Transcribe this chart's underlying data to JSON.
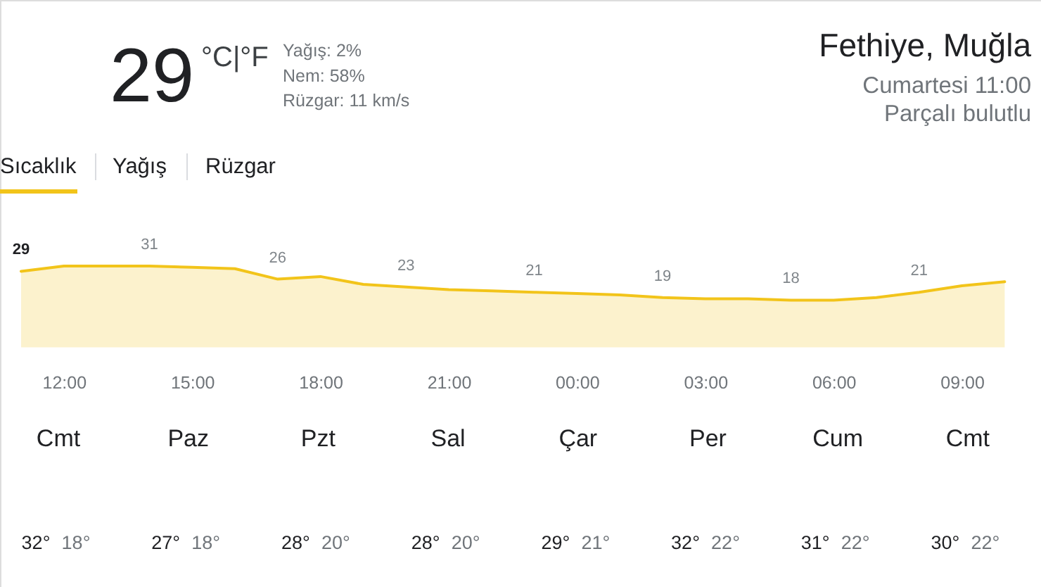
{
  "chart_data": [
    {
      "type": "area",
      "title": "Fethiye, Muğla",
      "subtitle": "Cumartesi 11:00",
      "annotations": [
        "29",
        "°C|°F",
        "Yağış: 2%",
        "Nem: 58%",
        "Rüzgar: 11 km/s",
        "Parçalı bulutlu",
        "Sıcaklık",
        "Yağış",
        "Rüzgar"
      ],
      "categories": [
        null,
        "12:00",
        null,
        null,
        "15:00",
        null,
        null,
        "18:00",
        null,
        null,
        "21:00",
        null,
        null,
        "00:00",
        null,
        null,
        "03:00",
        null,
        null,
        "06:00",
        null,
        null,
        "09:00",
        null
      ],
      "values": [
        29,
        31,
        31,
        31,
        30.5,
        30,
        26,
        27,
        24,
        23,
        22,
        21.5,
        21,
        20.5,
        20,
        19,
        18.5,
        18.5,
        18,
        18,
        19,
        21,
        23.5,
        25
      ],
      "value_labels": [
        "29",
        null,
        null,
        "31",
        null,
        null,
        "26",
        null,
        null,
        "23",
        null,
        null,
        "21",
        null,
        null,
        "19",
        null,
        null,
        "18",
        null,
        null,
        "21",
        null,
        null
      ],
      "color": "#f2c41a"
    },
    {
      "type": "other",
      "categories": [
        "Cmt",
        "Paz",
        "Pzt",
        "Sal",
        "Çar",
        "Per",
        "Cum",
        "Cmt"
      ],
      "annotations": [
        "32°",
        "18°",
        "27°",
        "18°",
        "28°",
        "20°",
        "28°",
        "20°",
        "29°",
        "21°",
        "32°",
        "22°",
        "31°",
        "22°",
        "30°",
        "22°"
      ]
    }
  ]
}
